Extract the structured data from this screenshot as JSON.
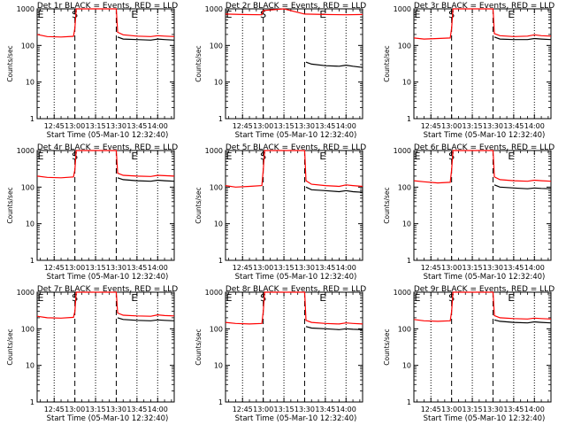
{
  "figure": {
    "xlabel": "Start Time (05-Mar-10 12:32:40)",
    "ylabel": "Counts/sec",
    "x_tick_labels": [
      "12:45",
      "13:00",
      "13:15",
      "13:30",
      "13:45",
      "14:00"
    ],
    "y_tick_labels": [
      "1",
      "10",
      "100",
      "1000"
    ],
    "markers": {
      "start": "S",
      "end": "E"
    },
    "colors": {
      "events": "#000000",
      "lld": "#ff0000",
      "axes": "#000000"
    }
  },
  "chart_data": [
    {
      "type": "line",
      "title": "Det 1r BLACK = Events, RED = LLD",
      "xlabel": "Start Time (05-Mar-10 12:32:40)",
      "ylabel": "Counts/sec",
      "yscale": "log",
      "ylim": [
        1,
        1000
      ],
      "xlim": [
        "12:32:40",
        "14:12:00"
      ],
      "x_ticks": [
        "12:45",
        "13:00",
        "13:15",
        "13:30",
        "13:45",
        "14:00"
      ],
      "dotted_lines": [
        "12:45",
        "13:15",
        "13:45",
        "14:00"
      ],
      "dashed_lines": [
        "13:00",
        "13:30"
      ],
      "annotations": [
        {
          "text": "S",
          "x": "13:00"
        },
        {
          "text": "E",
          "x": "13:45"
        }
      ],
      "series": [
        {
          "color": "#ff0000",
          "x": [
            "12:32:40",
            "12:40",
            "12:50",
            "12:59",
            "13:00",
            "13:01",
            "13:15",
            "13:30",
            "13:31",
            "13:35",
            "13:45",
            "13:55",
            "14:00",
            "14:05",
            "14:12"
          ],
          "y": [
            200,
            175,
            170,
            178,
            300,
            1000,
            1000,
            1000,
            230,
            195,
            180,
            175,
            185,
            180,
            175
          ]
        },
        {
          "color": "#000000",
          "x": [
            "13:31",
            "13:35",
            "13:45",
            "13:55",
            "14:00",
            "14:05",
            "14:12"
          ],
          "y": [
            170,
            150,
            145,
            140,
            150,
            145,
            140
          ]
        }
      ]
    },
    {
      "type": "line",
      "title": "Det 2r BLACK = Events, RED = LLD",
      "xlabel": "Start Time (05-Mar-10 12:32:40)",
      "ylabel": "Counts/sec",
      "yscale": "log",
      "ylim": [
        1,
        1000
      ],
      "xlim": [
        "12:32:40",
        "14:12:00"
      ],
      "x_ticks": [
        "12:45",
        "13:00",
        "13:15",
        "13:30",
        "13:45",
        "14:00"
      ],
      "dotted_lines": [
        "12:45",
        "13:15",
        "13:45",
        "14:00"
      ],
      "dashed_lines": [
        "13:00",
        "13:30"
      ],
      "annotations": [
        {
          "text": "S",
          "x": "13:00"
        },
        {
          "text": "E",
          "x": "13:45"
        }
      ],
      "series": [
        {
          "color": "#ff0000",
          "x": [
            "12:32:40",
            "12:45",
            "12:59",
            "13:00",
            "13:15",
            "13:30",
            "13:45",
            "14:00",
            "14:12"
          ],
          "y": [
            720,
            700,
            690,
            900,
            1000,
            720,
            700,
            690,
            700
          ]
        },
        {
          "color": "#000000",
          "x": [
            "13:31",
            "13:35",
            "13:45",
            "13:55",
            "14:00",
            "14:05",
            "14:12"
          ],
          "y": [
            35,
            31,
            28,
            27,
            29,
            27,
            25
          ]
        }
      ]
    },
    {
      "type": "line",
      "title": "Det 3r BLACK = Events, RED = LLD",
      "xlabel": "Start Time (05-Mar-10 12:32:40)",
      "ylabel": "Counts/sec",
      "yscale": "log",
      "ylim": [
        1,
        1000
      ],
      "xlim": [
        "12:32:40",
        "14:12:00"
      ],
      "x_ticks": [
        "12:45",
        "13:00",
        "13:15",
        "13:30",
        "13:45",
        "14:00"
      ],
      "dotted_lines": [
        "12:45",
        "13:15",
        "13:45",
        "14:00"
      ],
      "dashed_lines": [
        "13:00",
        "13:30"
      ],
      "annotations": [
        {
          "text": "S",
          "x": "13:00"
        },
        {
          "text": "E",
          "x": "13:45"
        }
      ],
      "series": [
        {
          "color": "#ff0000",
          "x": [
            "12:32:40",
            "12:40",
            "12:50",
            "12:59",
            "13:00",
            "13:01",
            "13:15",
            "13:30",
            "13:31",
            "13:35",
            "13:45",
            "13:55",
            "14:00",
            "14:05",
            "14:12"
          ],
          "y": [
            160,
            150,
            155,
            160,
            300,
            1000,
            1000,
            1000,
            210,
            185,
            175,
            180,
            195,
            185,
            180
          ]
        },
        {
          "color": "#000000",
          "x": [
            "13:31",
            "13:35",
            "13:45",
            "13:55",
            "14:00",
            "14:05",
            "14:12"
          ],
          "y": [
            170,
            150,
            145,
            145,
            155,
            150,
            145
          ]
        }
      ]
    },
    {
      "type": "line",
      "title": "Det 4r BLACK = Events, RED = LLD",
      "xlabel": "Start Time (05-Mar-10 12:32:40)",
      "ylabel": "Counts/sec",
      "yscale": "log",
      "ylim": [
        1,
        1000
      ],
      "xlim": [
        "12:32:40",
        "14:12:00"
      ],
      "x_ticks": [
        "12:45",
        "13:00",
        "13:15",
        "13:30",
        "13:45",
        "14:00"
      ],
      "dotted_lines": [
        "12:45",
        "13:15",
        "13:45",
        "14:00"
      ],
      "dashed_lines": [
        "13:00",
        "13:30"
      ],
      "annotations": [
        {
          "text": "S",
          "x": "13:00"
        },
        {
          "text": "E",
          "x": "13:45"
        }
      ],
      "series": [
        {
          "color": "#ff0000",
          "x": [
            "12:32:40",
            "12:40",
            "12:50",
            "12:59",
            "13:00",
            "13:01",
            "13:15",
            "13:30",
            "13:31",
            "13:35",
            "13:45",
            "13:55",
            "14:00",
            "14:05",
            "14:12"
          ],
          "y": [
            200,
            185,
            180,
            190,
            300,
            1000,
            1000,
            1000,
            240,
            210,
            200,
            195,
            210,
            205,
            200
          ]
        },
        {
          "color": "#000000",
          "x": [
            "13:31",
            "13:35",
            "13:45",
            "13:55",
            "14:00",
            "14:05",
            "14:12"
          ],
          "y": [
            180,
            160,
            150,
            145,
            155,
            150,
            145
          ]
        }
      ]
    },
    {
      "type": "line",
      "title": "Det 5r BLACK = Events, RED = LLD",
      "xlabel": "Start Time (05-Mar-10 12:32:40)",
      "ylabel": "Counts/sec",
      "yscale": "log",
      "ylim": [
        1,
        1000
      ],
      "xlim": [
        "12:32:40",
        "14:12:00"
      ],
      "x_ticks": [
        "12:45",
        "13:00",
        "13:15",
        "13:30",
        "13:45",
        "14:00"
      ],
      "dotted_lines": [
        "12:45",
        "13:15",
        "13:45",
        "14:00"
      ],
      "dashed_lines": [
        "13:00",
        "13:30"
      ],
      "annotations": [
        {
          "text": "S",
          "x": "13:00"
        },
        {
          "text": "E",
          "x": "13:45"
        }
      ],
      "series": [
        {
          "color": "#ff0000",
          "x": [
            "12:32:40",
            "12:40",
            "12:50",
            "12:59",
            "13:00",
            "13:01",
            "13:15",
            "13:30",
            "13:31",
            "13:35",
            "13:45",
            "13:55",
            "14:00",
            "14:05",
            "14:12"
          ],
          "y": [
            110,
            100,
            105,
            110,
            300,
            1000,
            1000,
            1000,
            150,
            120,
            110,
            105,
            115,
            110,
            105
          ]
        },
        {
          "color": "#000000",
          "x": [
            "13:31",
            "13:35",
            "13:45",
            "13:55",
            "14:00",
            "14:05",
            "14:12"
          ],
          "y": [
            100,
            85,
            80,
            75,
            80,
            75,
            72
          ]
        }
      ]
    },
    {
      "type": "line",
      "title": "Det 6r BLACK = Events, RED = LLD",
      "xlabel": "Start Time (05-Mar-10 12:32:40)",
      "ylabel": "Counts/sec",
      "yscale": "log",
      "ylim": [
        1,
        1000
      ],
      "xlim": [
        "12:32:40",
        "14:12:00"
      ],
      "x_ticks": [
        "12:45",
        "13:00",
        "13:15",
        "13:30",
        "13:45",
        "14:00"
      ],
      "dotted_lines": [
        "12:45",
        "13:15",
        "13:45",
        "14:00"
      ],
      "dashed_lines": [
        "13:00",
        "13:30"
      ],
      "annotations": [
        {
          "text": "S",
          "x": "13:00"
        },
        {
          "text": "E",
          "x": "13:45"
        }
      ],
      "series": [
        {
          "color": "#ff0000",
          "x": [
            "12:32:40",
            "12:40",
            "12:50",
            "12:59",
            "13:00",
            "13:01",
            "13:15",
            "13:30",
            "13:31",
            "13:35",
            "13:45",
            "13:55",
            "14:00",
            "14:05",
            "14:12"
          ],
          "y": [
            150,
            140,
            130,
            135,
            300,
            1000,
            1000,
            1000,
            190,
            160,
            150,
            145,
            155,
            150,
            145
          ]
        },
        {
          "color": "#000000",
          "x": [
            "13:31",
            "13:35",
            "13:45",
            "13:55",
            "14:00",
            "14:05",
            "14:12"
          ],
          "y": [
            115,
            100,
            95,
            90,
            95,
            92,
            90
          ]
        }
      ]
    },
    {
      "type": "line",
      "title": "Det 7r BLACK = Events, RED = LLD",
      "xlabel": "Start Time (05-Mar-10 12:32:40)",
      "ylabel": "Counts/sec",
      "yscale": "log",
      "ylim": [
        1,
        1000
      ],
      "xlim": [
        "12:32:40",
        "14:12:00"
      ],
      "x_ticks": [
        "12:45",
        "13:00",
        "13:15",
        "13:30",
        "13:45",
        "14:00"
      ],
      "dotted_lines": [
        "12:45",
        "13:15",
        "13:45",
        "14:00"
      ],
      "dashed_lines": [
        "13:00",
        "13:30"
      ],
      "annotations": [
        {
          "text": "S",
          "x": "13:00"
        },
        {
          "text": "E",
          "x": "13:45"
        }
      ],
      "series": [
        {
          "color": "#ff0000",
          "x": [
            "12:32:40",
            "12:40",
            "12:50",
            "12:59",
            "13:00",
            "13:01",
            "13:15",
            "13:30",
            "13:31",
            "13:35",
            "13:45",
            "13:55",
            "14:00",
            "14:05",
            "14:12"
          ],
          "y": [
            220,
            200,
            195,
            205,
            300,
            1000,
            1000,
            1000,
            270,
            235,
            225,
            220,
            240,
            230,
            225
          ]
        },
        {
          "color": "#000000",
          "x": [
            "13:31",
            "13:35",
            "13:45",
            "13:55",
            "14:00",
            "14:05",
            "14:12"
          ],
          "y": [
            200,
            180,
            170,
            165,
            175,
            170,
            165
          ]
        }
      ]
    },
    {
      "type": "line",
      "title": "Det 8r BLACK = Events, RED = LLD",
      "xlabel": "Start Time (05-Mar-10 12:32:40)",
      "ylabel": "Counts/sec",
      "yscale": "log",
      "ylim": [
        1,
        1000
      ],
      "xlim": [
        "12:32:40",
        "14:12:00"
      ],
      "x_ticks": [
        "12:45",
        "13:00",
        "13:15",
        "13:30",
        "13:45",
        "14:00"
      ],
      "dotted_lines": [
        "12:45",
        "13:15",
        "13:45",
        "14:00"
      ],
      "dashed_lines": [
        "13:00",
        "13:30"
      ],
      "annotations": [
        {
          "text": "S",
          "x": "13:00"
        },
        {
          "text": "E",
          "x": "13:45"
        }
      ],
      "series": [
        {
          "color": "#ff0000",
          "x": [
            "12:32:40",
            "12:40",
            "12:50",
            "12:59",
            "13:00",
            "13:01",
            "13:15",
            "13:30",
            "13:31",
            "13:35",
            "13:45",
            "13:55",
            "14:00",
            "14:05",
            "14:12"
          ],
          "y": [
            150,
            140,
            135,
            140,
            300,
            1000,
            1000,
            1000,
            170,
            150,
            140,
            135,
            145,
            140,
            135
          ]
        },
        {
          "color": "#000000",
          "x": [
            "13:31",
            "13:35",
            "13:45",
            "13:55",
            "14:00",
            "14:05",
            "14:12"
          ],
          "y": [
            115,
            105,
            100,
            95,
            100,
            97,
            95
          ]
        }
      ]
    },
    {
      "type": "line",
      "title": "Det 9r BLACK = Events, RED = LLD",
      "xlabel": "Start Time (05-Mar-10 12:32:40)",
      "ylabel": "Counts/sec",
      "yscale": "log",
      "ylim": [
        1,
        1000
      ],
      "xlim": [
        "12:32:40",
        "14:12:00"
      ],
      "x_ticks": [
        "12:45",
        "13:00",
        "13:15",
        "13:30",
        "13:45",
        "14:00"
      ],
      "dotted_lines": [
        "12:45",
        "13:15",
        "13:45",
        "14:00"
      ],
      "dashed_lines": [
        "13:00",
        "13:30"
      ],
      "annotations": [
        {
          "text": "S",
          "x": "13:00"
        },
        {
          "text": "E",
          "x": "13:45"
        }
      ],
      "series": [
        {
          "color": "#ff0000",
          "x": [
            "12:32:40",
            "12:40",
            "12:50",
            "12:59",
            "13:00",
            "13:01",
            "13:15",
            "13:30",
            "13:31",
            "13:35",
            "13:45",
            "13:55",
            "14:00",
            "14:05",
            "14:12"
          ],
          "y": [
            180,
            165,
            160,
            165,
            300,
            1000,
            1000,
            1000,
            230,
            200,
            190,
            185,
            195,
            190,
            185
          ]
        },
        {
          "color": "#000000",
          "x": [
            "13:31",
            "13:35",
            "13:45",
            "13:55",
            "14:00",
            "14:05",
            "14:12"
          ],
          "y": [
            175,
            160,
            150,
            145,
            155,
            150,
            145
          ]
        }
      ]
    }
  ]
}
